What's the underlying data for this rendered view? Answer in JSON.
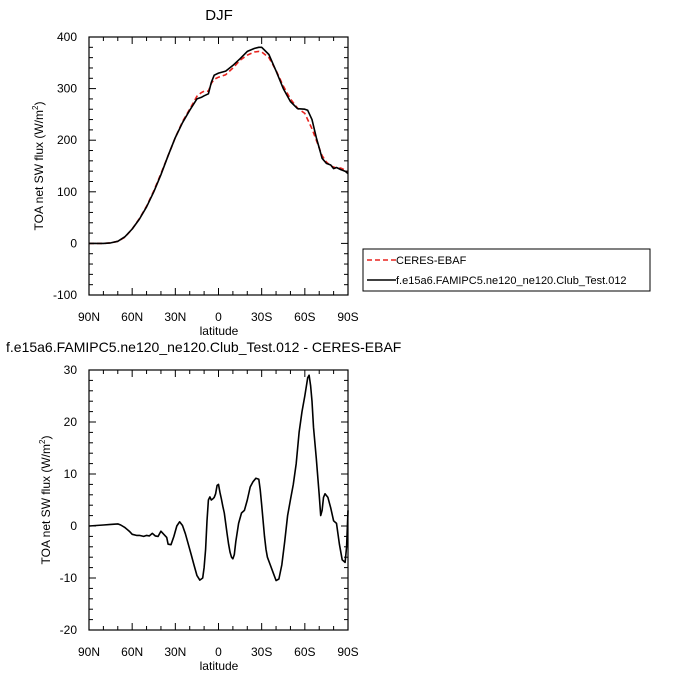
{
  "chart_data": [
    {
      "type": "line",
      "title": "DJF",
      "xlabel": "latitude",
      "ylabel": "TOA net SW flux (W/m",
      "ylabel_sup": "2",
      "ylabel_close": ")",
      "xlim": [
        90,
        -90
      ],
      "ylim": [
        -100,
        400
      ],
      "x_ticks": [
        90,
        60,
        30,
        0,
        -30,
        -60,
        -90
      ],
      "x_tick_labels": [
        "90N",
        "60N",
        "30N",
        "0",
        "30S",
        "60S",
        "90S"
      ],
      "y_ticks": [
        -100,
        0,
        100,
        200,
        300,
        400
      ],
      "y_tick_labels": [
        "-100",
        "0",
        "100",
        "200",
        "300",
        "400"
      ],
      "legend_position": "right, outside plot",
      "grid": false,
      "series": [
        {
          "name": "CERES-EBAF",
          "color": "#e8231e",
          "dash": "dashed",
          "x": [
            90,
            85,
            80,
            75,
            70,
            65,
            60,
            55,
            50,
            45,
            40,
            35,
            30,
            25,
            20,
            15,
            12,
            10,
            7,
            5,
            3,
            0,
            -5,
            -10,
            -15,
            -20,
            -25,
            -28,
            -30,
            -35,
            -40,
            -45,
            -50,
            -55,
            -60,
            -62,
            -65,
            -68,
            -70,
            -72,
            -75,
            -78,
            -80,
            -82,
            -85,
            -88,
            -90
          ],
          "y": [
            0,
            0,
            0,
            1,
            4,
            12,
            28,
            48,
            72,
            102,
            135,
            170,
            205,
            236,
            260,
            285,
            292,
            295,
            295,
            310,
            318,
            322,
            327,
            340,
            355,
            365,
            371,
            372,
            371,
            360,
            335,
            305,
            280,
            262,
            252,
            240,
            222,
            200,
            185,
            170,
            158,
            150,
            148,
            146,
            146,
            142,
            138
          ]
        },
        {
          "name": "f.e15a6.FAMIPC5.ne120_ne120.Club_Test.012",
          "color": "#000000",
          "dash": "solid",
          "x": [
            90,
            85,
            80,
            75,
            70,
            65,
            60,
            55,
            50,
            45,
            40,
            35,
            30,
            25,
            20,
            15,
            12,
            10,
            7,
            5,
            3,
            0,
            -5,
            -10,
            -15,
            -20,
            -25,
            -28,
            -30,
            -35,
            -40,
            -45,
            -50,
            -55,
            -60,
            -62,
            -65,
            -68,
            -70,
            -72,
            -75,
            -78,
            -80,
            -82,
            -85,
            -88,
            -90
          ],
          "y": [
            0,
            0,
            0,
            1,
            4,
            13,
            28,
            47,
            71,
            100,
            133,
            170,
            205,
            234,
            258,
            280,
            283,
            286,
            290,
            312,
            326,
            330,
            334,
            345,
            358,
            372,
            378,
            380,
            380,
            366,
            334,
            300,
            275,
            261,
            260,
            258,
            240,
            205,
            185,
            165,
            155,
            152,
            145,
            147,
            143,
            140,
            135
          ]
        }
      ]
    },
    {
      "type": "line",
      "title": "f.e15a6.FAMIPC5.ne120_ne120.Club_Test.012 - CERES-EBAF",
      "xlabel": "latitude",
      "ylabel": "TOA net SW flux (W/m",
      "ylabel_sup": "2",
      "ylabel_close": ")",
      "xlim": [
        90,
        -90
      ],
      "ylim": [
        -20,
        30
      ],
      "x_ticks": [
        90,
        60,
        30,
        0,
        -30,
        -60,
        -90
      ],
      "x_tick_labels": [
        "90N",
        "60N",
        "30N",
        "0",
        "30S",
        "60S",
        "90S"
      ],
      "y_ticks": [
        -20,
        -10,
        0,
        10,
        20,
        30
      ],
      "y_tick_labels": [
        "-20",
        "-10",
        "0",
        "10",
        "20",
        "30"
      ],
      "grid": false,
      "series": [
        {
          "color": "#000000",
          "dash": "solid",
          "x": [
            90,
            85,
            80,
            75,
            70,
            68,
            65,
            62,
            60,
            57,
            55,
            52,
            50,
            48,
            46,
            44,
            42,
            40,
            38,
            36,
            35,
            33,
            31,
            29,
            27,
            25,
            23,
            21,
            19,
            17,
            15,
            13,
            11,
            10,
            9,
            8,
            7,
            6,
            5,
            4,
            3,
            2,
            1,
            0,
            -1,
            -2,
            -3,
            -4,
            -5,
            -6,
            -7,
            -8,
            -9,
            -10,
            -11,
            -12,
            -14,
            -16,
            -18,
            -20,
            -22,
            -24,
            -26,
            -28,
            -29,
            -30,
            -31,
            -32,
            -33,
            -34,
            -36,
            -38,
            -40,
            -42,
            -44,
            -46,
            -48,
            -50,
            -52,
            -54,
            -56,
            -58,
            -60,
            -62,
            -63,
            -64,
            -65,
            -66,
            -68,
            -70,
            -71,
            -72,
            -73,
            -74,
            -76,
            -78,
            -80,
            -82,
            -84,
            -86,
            -88,
            -89,
            -90
          ],
          "y": [
            0,
            0.1,
            0.2,
            0.3,
            0.4,
            0.2,
            -0.3,
            -1.0,
            -1.6,
            -1.8,
            -1.8,
            -2.0,
            -1.8,
            -1.9,
            -1.4,
            -1.9,
            -2.0,
            -1.0,
            -1.6,
            -2.2,
            -3.5,
            -3.6,
            -2.0,
            0,
            0.8,
            0.1,
            -1.5,
            -3.5,
            -5.5,
            -7.5,
            -9.5,
            -10.4,
            -10.0,
            -8.0,
            -4.5,
            1.0,
            5.0,
            5.6,
            5.0,
            5.2,
            5.5,
            6.2,
            7.8,
            8.0,
            6.5,
            5.2,
            3.8,
            2.5,
            0.5,
            -1.5,
            -3.5,
            -5.0,
            -6.0,
            -6.3,
            -5.5,
            -3.0,
            0.5,
            2.5,
            3.0,
            5.0,
            7.5,
            8.5,
            9.2,
            9.0,
            7.0,
            4.0,
            1.0,
            -2.0,
            -4.5,
            -6.0,
            -7.5,
            -9.0,
            -10.5,
            -10.2,
            -7.5,
            -3.0,
            2.0,
            5.0,
            8.0,
            12.0,
            18.0,
            22.0,
            25.0,
            28.5,
            29.0,
            27.0,
            24.0,
            19.0,
            13.0,
            6.0,
            2.0,
            3.0,
            5.5,
            6.2,
            5.5,
            3.5,
            1.0,
            0.5,
            -3.5,
            -6.5,
            -7.0,
            -4.0,
            3.0
          ]
        }
      ]
    }
  ]
}
